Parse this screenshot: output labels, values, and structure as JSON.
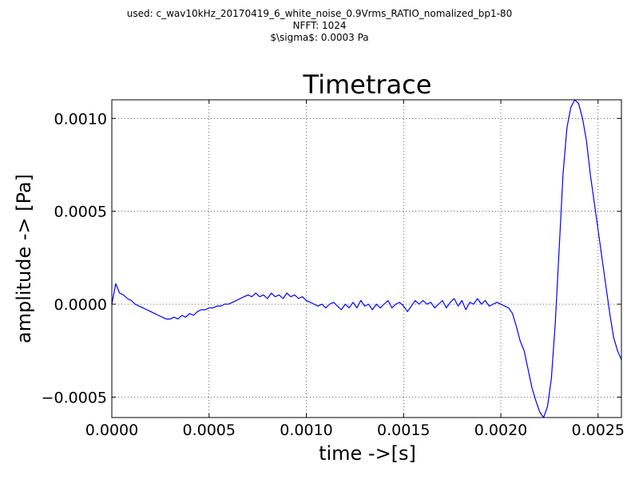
{
  "header": {
    "line1": "used: c_wav10kHz_20170419_6_white_noise_0.9Vrms_RATIO_nomalized_bp1-80",
    "line2": "NFFT: 1024",
    "line3": "$\\sigma$: 0.0003 Pa"
  },
  "chart_data": {
    "type": "line",
    "title": "Timetrace",
    "xlabel": "time ->[s]",
    "ylabel": "amplitude -> [Pa]",
    "xlim": [
      0,
      0.00262
    ],
    "ylim": [
      -0.00061,
      0.0011
    ],
    "grid": true,
    "xticks": [
      0,
      0.0005,
      0.001,
      0.0015,
      0.002,
      0.0025
    ],
    "xtick_labels": [
      "0.0000",
      "0.0005",
      "0.0010",
      "0.0015",
      "0.0020",
      "0.0025"
    ],
    "yticks": [
      -0.0005,
      0,
      0.0005,
      0.001
    ],
    "ytick_labels": [
      "−0.0005",
      "0.0000",
      "0.0005",
      "0.0010"
    ],
    "colors": {
      "line": "#0000ff"
    },
    "series": [
      {
        "x": [
          0,
          2e-05,
          4e-05,
          6e-05,
          8e-05,
          0.0001,
          0.00012,
          0.00014,
          0.00016,
          0.00018,
          0.0002,
          0.00022,
          0.00024,
          0.00026,
          0.00028,
          0.0003,
          0.00032,
          0.00034,
          0.00036,
          0.00038,
          0.0004,
          0.00042,
          0.00044,
          0.00046,
          0.00048,
          0.0005,
          0.00052,
          0.00054,
          0.00056,
          0.00058,
          0.0006,
          0.00062,
          0.00064,
          0.00066,
          0.00068,
          0.0007,
          0.00072,
          0.00074,
          0.00076,
          0.00078,
          0.0008,
          0.00082,
          0.00084,
          0.00086,
          0.00088,
          0.0009,
          0.00092,
          0.00094,
          0.00096,
          0.00098,
          0.001,
          0.00102,
          0.00104,
          0.00106,
          0.00108,
          0.0011,
          0.00112,
          0.00114,
          0.00116,
          0.00118,
          0.0012,
          0.00122,
          0.00124,
          0.00126,
          0.00128,
          0.0013,
          0.00132,
          0.00134,
          0.00136,
          0.00138,
          0.0014,
          0.00142,
          0.00144,
          0.00146,
          0.00148,
          0.0015,
          0.00152,
          0.00154,
          0.00156,
          0.00158,
          0.0016,
          0.00162,
          0.00164,
          0.00166,
          0.00168,
          0.0017,
          0.00172,
          0.00174,
          0.00176,
          0.00178,
          0.0018,
          0.00182,
          0.00184,
          0.00186,
          0.00188,
          0.0019,
          0.00192,
          0.00194,
          0.00196,
          0.00198,
          0.002,
          0.00202,
          0.00204,
          0.00206,
          0.00208,
          0.0021,
          0.00212,
          0.00214,
          0.00216,
          0.00218,
          0.0022,
          0.00222,
          0.00224,
          0.00226,
          0.00228,
          0.0023,
          0.00232,
          0.00234,
          0.00236,
          0.00238,
          0.0024,
          0.00242,
          0.00244,
          0.00246,
          0.00248,
          0.0025,
          0.00252,
          0.00254,
          0.00256,
          0.00258,
          0.0026,
          0.00262
        ],
        "y": [
          0.0,
          0.00011,
          6e-05,
          5e-05,
          3e-05,
          2e-05,
          0.0,
          -1e-05,
          -2e-05,
          -3e-05,
          -4e-05,
          -5e-05,
          -6e-05,
          -7e-05,
          -8e-05,
          -8e-05,
          -7e-05,
          -8e-05,
          -6e-05,
          -7e-05,
          -5e-05,
          -6e-05,
          -4e-05,
          -3e-05,
          -3e-05,
          -2e-05,
          -2e-05,
          -1e-05,
          -1e-05,
          0.0,
          0.0,
          1e-05,
          2e-05,
          3e-05,
          4e-05,
          5e-05,
          4e-05,
          6e-05,
          4e-05,
          5e-05,
          3e-05,
          6e-05,
          4e-05,
          5e-05,
          3e-05,
          6e-05,
          4e-05,
          5e-05,
          3e-05,
          4e-05,
          2e-05,
          1e-05,
          0.0,
          -1e-05,
          0.0,
          -2e-05,
          0.0,
          1e-05,
          -1e-05,
          -3e-05,
          0.0,
          -2e-05,
          1e-05,
          -2e-05,
          2e-05,
          -1e-05,
          0.0,
          -3e-05,
          0.0,
          -2e-05,
          0.0,
          2e-05,
          -2e-05,
          0.0,
          1e-05,
          -1e-05,
          -4e-05,
          -1e-05,
          2e-05,
          0.0,
          2e-05,
          0.0,
          1e-05,
          -2e-05,
          0.0,
          2e-05,
          -2e-05,
          1e-05,
          3e-05,
          -1e-05,
          2e-05,
          -3e-05,
          1e-05,
          0.0,
          3e-05,
          0.0,
          2e-05,
          -1e-05,
          0.0,
          1e-05,
          0.0,
          -1e-05,
          -2e-05,
          -5e-05,
          -0.00012,
          -0.0002,
          -0.00025,
          -0.00035,
          -0.00045,
          -0.00052,
          -0.00058,
          -0.00061,
          -0.00055,
          -0.0004,
          -0.0001,
          0.0003,
          0.0007,
          0.00095,
          0.00106,
          0.0011,
          0.00108,
          0.001,
          0.00088,
          0.0007,
          0.00055,
          0.0004,
          0.00025,
          0.0001,
          -5e-05,
          -0.00018,
          -0.00025,
          -0.0003
        ]
      }
    ]
  }
}
